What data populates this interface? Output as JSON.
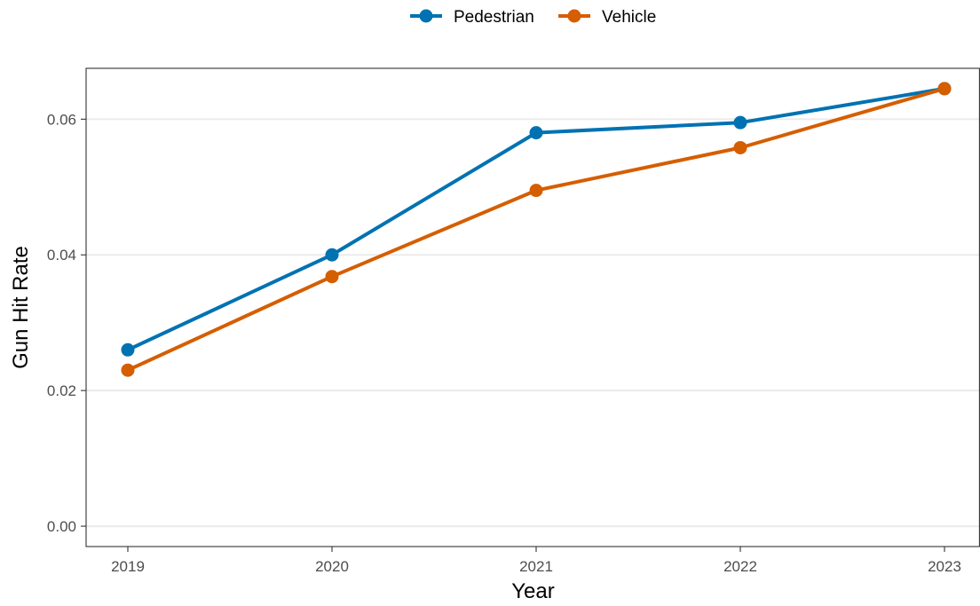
{
  "chart_data": {
    "type": "line",
    "title": "",
    "xlabel": "Year",
    "ylabel": "Gun Hit Rate",
    "x": [
      "2019",
      "2020",
      "2021",
      "2022",
      "2023"
    ],
    "y_ticks": [
      "0.00",
      "0.02",
      "0.04",
      "0.06"
    ],
    "ylim": [
      -0.003,
      0.0675
    ],
    "grid": "horizontal",
    "legend_position": "top",
    "series": [
      {
        "name": "Pedestrian",
        "color": "#0072B2",
        "values": [
          0.026,
          0.04,
          0.058,
          0.0595,
          0.0645
        ]
      },
      {
        "name": "Vehicle",
        "color": "#D55E00",
        "values": [
          0.023,
          0.0368,
          0.0495,
          0.0558,
          0.0645
        ]
      }
    ]
  }
}
